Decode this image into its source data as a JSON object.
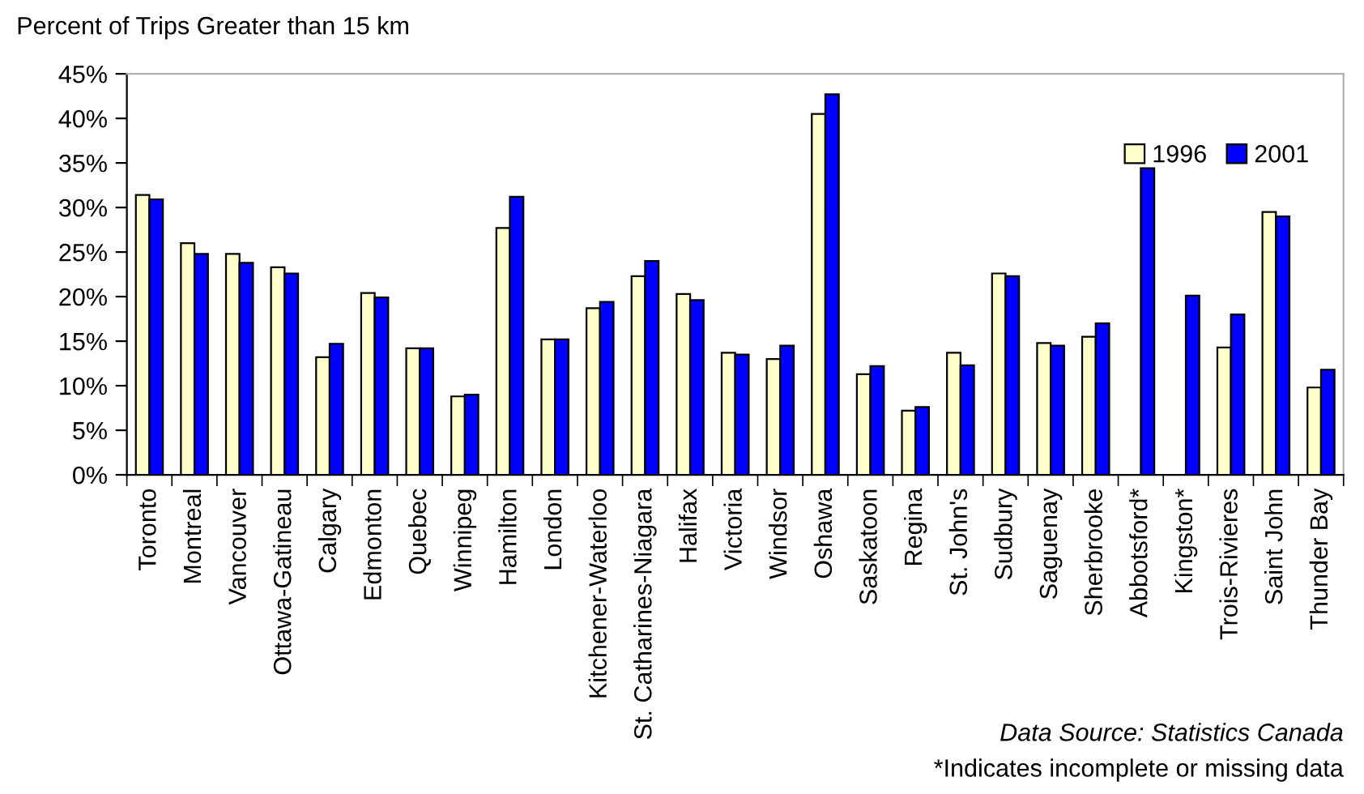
{
  "chart_data": {
    "type": "bar",
    "title": "Percent of Trips Greater than 15 km",
    "categories": [
      "Toronto",
      "Montreal",
      "Vancouver",
      "Ottawa-Gatineau",
      "Calgary",
      "Edmonton",
      "Quebec",
      "Winnipeg",
      "Hamilton",
      "London",
      "Kitchener-Waterloo",
      "St. Catharines-Niagara",
      "Halifax",
      "Victoria",
      "Windsor",
      "Oshawa",
      "Saskatoon",
      "Regina",
      "St. John's",
      "Sudbury",
      "Saguenay",
      "Sherbrooke",
      "Abbotsford*",
      "Kingston*",
      "Trois-Rivieres",
      "Saint John",
      "Thunder Bay"
    ],
    "series": [
      {
        "name": "1996",
        "color": "#ffffcc",
        "values": [
          31.4,
          26.0,
          24.8,
          23.3,
          13.2,
          20.4,
          14.2,
          8.8,
          27.7,
          15.2,
          18.7,
          22.3,
          20.3,
          13.7,
          13.0,
          40.5,
          11.3,
          7.2,
          13.7,
          22.6,
          14.8,
          15.5,
          null,
          null,
          14.3,
          29.5,
          9.8
        ]
      },
      {
        "name": "2001",
        "color": "#0000ff",
        "values": [
          30.9,
          24.8,
          23.8,
          22.6,
          14.7,
          19.9,
          14.2,
          9.0,
          31.2,
          15.2,
          19.4,
          24.0,
          19.6,
          13.5,
          14.5,
          42.7,
          12.2,
          7.6,
          12.3,
          22.3,
          14.5,
          17.0,
          34.4,
          20.1,
          18.0,
          29.0,
          11.8
        ]
      }
    ],
    "ylim": [
      0,
      45
    ],
    "yticks": [
      {
        "value": 0,
        "label": "0%"
      },
      {
        "value": 5,
        "label": "5%"
      },
      {
        "value": 10,
        "label": "10%"
      },
      {
        "value": 15,
        "label": "15%"
      },
      {
        "value": 20,
        "label": "20%"
      },
      {
        "value": 25,
        "label": "25%"
      },
      {
        "value": 30,
        "label": "30%"
      },
      {
        "value": 35,
        "label": "35%"
      },
      {
        "value": 40,
        "label": "40%"
      },
      {
        "value": 45,
        "label": "45%"
      }
    ],
    "legend": "top right",
    "annotations": [
      "Data Source: Statistics Canada",
      "*Indicates incomplete or missing data"
    ]
  }
}
